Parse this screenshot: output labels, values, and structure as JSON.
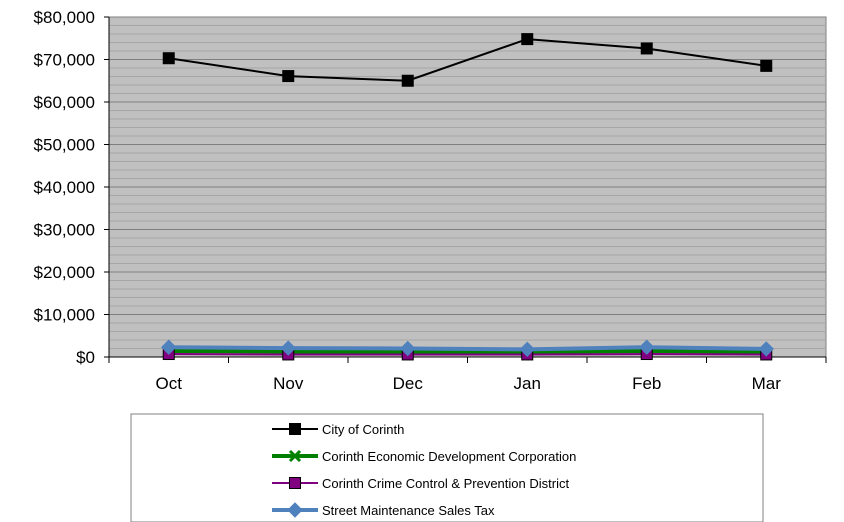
{
  "chart_data": {
    "type": "line",
    "categories": [
      "Oct",
      "Nov",
      "Dec",
      "Jan",
      "Feb",
      "Mar"
    ],
    "ylim": [
      0,
      80000
    ],
    "yticks": [
      0,
      10000,
      20000,
      30000,
      40000,
      50000,
      60000,
      70000,
      80000
    ],
    "ytick_labels": [
      "$0",
      "$10,000",
      "$20,000",
      "$30,000",
      "$40,000",
      "$50,000",
      "$60,000",
      "$70,000",
      "$80,000"
    ],
    "grid": true,
    "plot_background": "#c0c0c0",
    "legend_position": "bottom",
    "series": [
      {
        "name": "City of Corinth",
        "color": "#000000",
        "marker": "square",
        "values": [
          70300,
          66100,
          65000,
          74800,
          72600,
          68500
        ]
      },
      {
        "name": "Corinth Economic Development Corporation",
        "color": "#008000",
        "marker": "x",
        "values": [
          1400,
          1300,
          1300,
          1200,
          1400,
          1200
        ]
      },
      {
        "name": "Corinth Crime Control & Prevention District",
        "color": "#800080",
        "marker": "square",
        "values": [
          700,
          600,
          600,
          600,
          700,
          600
        ]
      },
      {
        "name": "Street Maintenance Sales Tax",
        "color": "#4f81bd",
        "marker": "diamond",
        "values": [
          2300,
          2100,
          2000,
          1800,
          2300,
          1900
        ]
      }
    ]
  }
}
